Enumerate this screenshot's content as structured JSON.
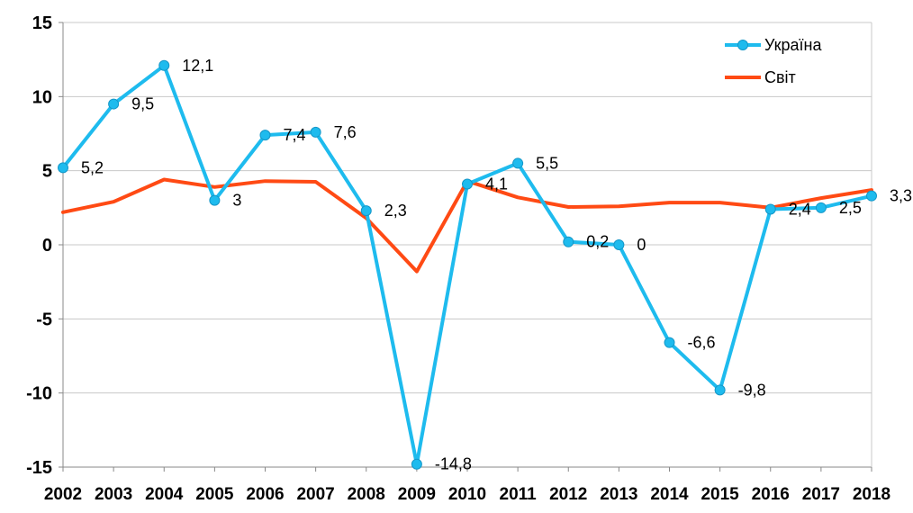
{
  "chart_data": {
    "type": "line",
    "categories": [
      "2002",
      "2003",
      "2004",
      "2005",
      "2006",
      "2007",
      "2008",
      "2009",
      "2010",
      "2011",
      "2012",
      "2013",
      "2014",
      "2015",
      "2016",
      "2017",
      "2018"
    ],
    "series": [
      {
        "name": "Україна",
        "color": "#1EBBEE",
        "marker": "circle",
        "values": [
          5.2,
          9.5,
          12.1,
          3,
          7.4,
          7.6,
          2.3,
          -14.8,
          4.1,
          5.5,
          0.2,
          0,
          -6.6,
          -9.8,
          2.4,
          2.5,
          3.3
        ],
        "labels": [
          "5,2",
          "9,5",
          "12,1",
          "3",
          "7,4",
          "7,6",
          "2,3",
          "-14,8",
          "4,1",
          "5,5",
          "0,2",
          "0",
          "-6,6",
          "-9,8",
          "2,4",
          "2,5",
          "3,3"
        ]
      },
      {
        "name": "Світ",
        "color": "#FF4A14",
        "marker": "none",
        "values": [
          2.2,
          2.9,
          4.4,
          3.9,
          4.3,
          4.25,
          1.8,
          -1.8,
          4.3,
          3.2,
          2.55,
          2.6,
          2.85,
          2.85,
          2.5,
          3.15,
          3.7
        ]
      }
    ],
    "yticks": [
      "15",
      "10",
      "5",
      "0",
      "-5",
      "-10",
      "-15"
    ],
    "ylim": [
      -15,
      15
    ],
    "grid": "horizontal",
    "legend": "top-right"
  }
}
